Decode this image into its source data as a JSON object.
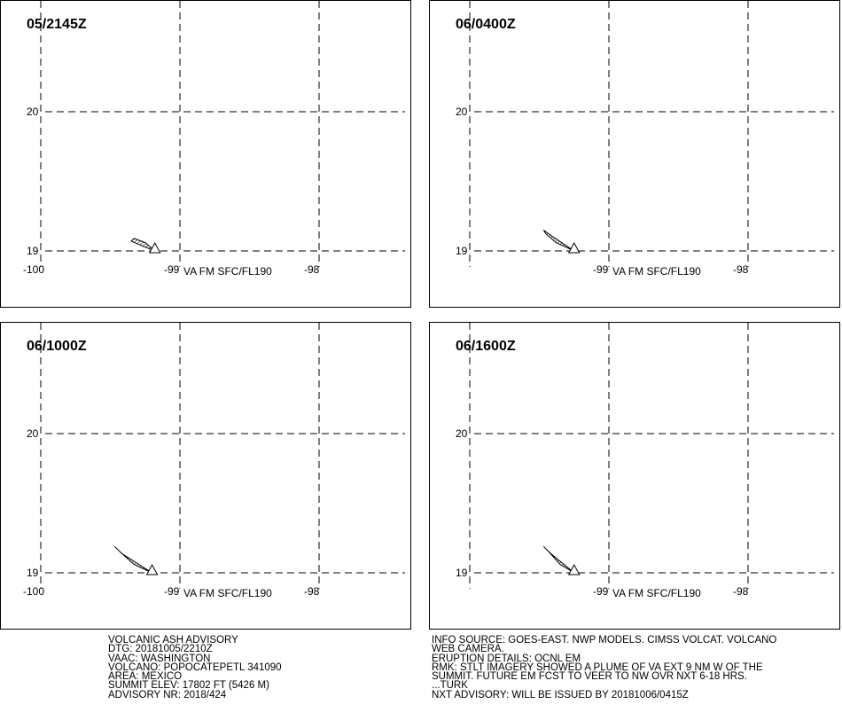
{
  "panels": [
    {
      "title": "05/2145Z",
      "plume_label": "VA FM SFC/FL190",
      "plume": [
        [
          -99.33,
          19.09
        ],
        [
          -99.25,
          19.06
        ],
        [
          -99.18,
          19.0
        ],
        [
          -99.28,
          19.04
        ],
        [
          -99.35,
          19.07
        ]
      ]
    },
    {
      "title": "06/0400Z",
      "plume_label": "VA FM SFC/FL190",
      "plume": [
        [
          -99.47,
          19.15
        ],
        [
          -99.4,
          19.1
        ],
        [
          -99.25,
          19.0
        ],
        [
          -99.38,
          19.06
        ],
        [
          -99.45,
          19.12
        ]
      ]
    },
    {
      "title": "06/1000Z",
      "plume_label": "VA FM SFC/FL190",
      "plume": [
        [
          -99.47,
          19.19
        ],
        [
          -99.42,
          19.14
        ],
        [
          -99.2,
          19.0
        ],
        [
          -99.33,
          19.06
        ],
        [
          -99.44,
          19.16
        ]
      ]
    },
    {
      "title": "06/1600Z",
      "plume_label": "VA FM SFC/FL190",
      "plume": [
        [
          -99.47,
          19.19
        ],
        [
          -99.42,
          19.14
        ],
        [
          -99.25,
          19.0
        ],
        [
          -99.35,
          19.06
        ],
        [
          -99.44,
          19.16
        ]
      ]
    }
  ],
  "axes": {
    "lon_labels": [
      "-100",
      "-99",
      "-98"
    ],
    "lat_labels": [
      "20",
      "19"
    ],
    "lon_values": [
      -100,
      -99,
      -98
    ],
    "lat_values": [
      20,
      19
    ]
  },
  "advisory_left": [
    "VOLCANIC ASH ADVISORY",
    "DTG: 20181005/2210Z",
    "VAAC: WASHINGTON",
    "VOLCANO: POPOCATEPETL 341090",
    "AREA: MEXICO",
    "SUMMIT ELEV: 17802 FT (5426 M)",
    "ADVISORY NR: 2018/424"
  ],
  "advisory_right": [
    "INFO SOURCE: GOES-EAST. NWP MODELS. CIMSS VOLCAT. VOLCANO",
    "WEB CAMERA.",
    "ERUPTION DETAILS: OCNL EM",
    "RMK: STLT IMAGERY SHOWED A PLUME OF VA EXT 9 NM W OF THE",
    "SUMMIT. FUTURE EM FCST TO VEER TO NW OVR NXT 6-18 HRS.",
    "...TURK",
    "NXT ADVISORY: WILL BE ISSUED BY 20181006/0415Z"
  ],
  "colors": {
    "line": "#000000",
    "background": "#ffffff"
  }
}
